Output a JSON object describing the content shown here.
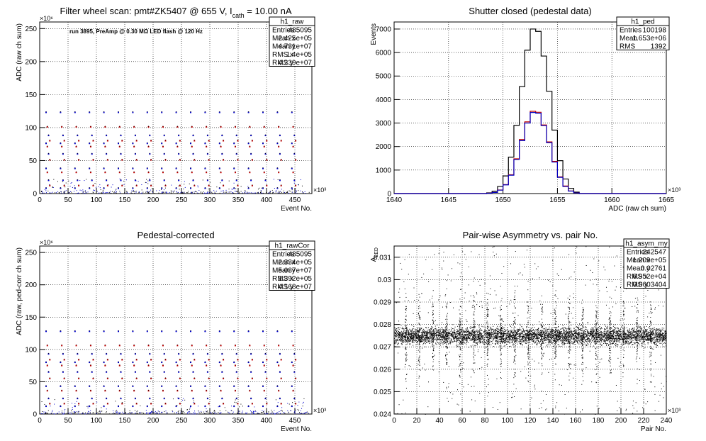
{
  "chart_data": [
    {
      "type": "scatter",
      "title": "Filter wheel scan: pmt#ZK5407 @   655 V, I",
      "title_sub": "cath",
      "title_tail": " = 10.00 nA",
      "annotation": "run 3895, PreAmp @ 0.30 MΩ LED flash @  120 Hz",
      "xlabel": "Event No.",
      "ylabel": "ADC (raw ch sum)",
      "x_exponent": "×10³",
      "y_exponent": "×10⁶",
      "xlim": [
        0,
        480
      ],
      "ylim": [
        0,
        260
      ],
      "xticks": [
        "0",
        "50",
        "100",
        "150",
        "200",
        "250",
        "300",
        "350",
        "400",
        "450"
      ],
      "yticks": [
        "0",
        "50",
        "100",
        "150",
        "200",
        "250"
      ],
      "levels": [
        123,
        101,
        88,
        80,
        76,
        71,
        60,
        51,
        38,
        32,
        20,
        12,
        8
      ],
      "stats": {
        "name": "h1_raw",
        "rows": [
          [
            "Entries",
            "485095"
          ],
          [
            "Mean x",
            "2.425e+05"
          ],
          [
            "Mean y",
            "4.731e+07"
          ],
          [
            "RMS x",
            "1.4e+05"
          ],
          [
            "RMS y",
            "4.239e+07"
          ]
        ]
      }
    },
    {
      "type": "line",
      "title": "Shutter closed (pedestal data)",
      "xlabel": "ADC (raw ch sum)",
      "ylabel": "Events",
      "x_exponent": "×10³",
      "xlim": [
        1640,
        1665
      ],
      "ylim": [
        0,
        7300
      ],
      "xticks": [
        "1640",
        "1645",
        "1650",
        "1655",
        "1660",
        "1665"
      ],
      "yticks": [
        "0",
        "1000",
        "2000",
        "3000",
        "4000",
        "5000",
        "6000",
        "7000"
      ],
      "series": [
        {
          "color": "#000000",
          "x": [
            1648,
            1648.5,
            1649,
            1649.5,
            1650,
            1650.5,
            1651,
            1651.5,
            1652,
            1652.5,
            1653,
            1653.5,
            1654,
            1654.5,
            1655,
            1655.5,
            1656,
            1656.5,
            1657
          ],
          "values": [
            0,
            30,
            100,
            300,
            750,
            1550,
            2900,
            4550,
            6100,
            7000,
            6900,
            5850,
            4350,
            2700,
            1400,
            620,
            220,
            60,
            0
          ]
        },
        {
          "color": "#c00000",
          "x": [
            1648,
            1648.5,
            1649,
            1649.5,
            1650,
            1650.5,
            1651,
            1651.5,
            1652,
            1652.5,
            1653,
            1653.5,
            1654,
            1654.5,
            1655,
            1655.5,
            1656,
            1656.5,
            1657
          ],
          "values": [
            0,
            15,
            50,
            150,
            380,
            800,
            1480,
            2300,
            3050,
            3500,
            3460,
            2920,
            2200,
            1370,
            710,
            320,
            110,
            30,
            0
          ]
        },
        {
          "color": "#0000c0",
          "x": [
            1648,
            1648.5,
            1649,
            1649.5,
            1650,
            1650.5,
            1651,
            1651.5,
            1652,
            1652.5,
            1653,
            1653.5,
            1654,
            1654.5,
            1655,
            1655.5,
            1656,
            1656.5,
            1657
          ],
          "values": [
            0,
            14,
            48,
            145,
            370,
            780,
            1450,
            2250,
            3000,
            3450,
            3420,
            2890,
            2160,
            1340,
            690,
            300,
            105,
            28,
            0
          ]
        }
      ],
      "stats": {
        "name": "h1_ped",
        "rows": [
          [
            "Entries",
            "100198"
          ],
          [
            "Mean",
            "1.653e+06"
          ],
          [
            "RMS",
            "1392"
          ]
        ]
      }
    },
    {
      "type": "scatter",
      "title": "Pedestal-corrected",
      "xlabel": "Event No.",
      "ylabel": "ADC (raw, ped-corr ch sum)",
      "x_exponent": "×10³",
      "y_exponent": "×10⁶",
      "xlim": [
        0,
        480
      ],
      "ylim": [
        0,
        260
      ],
      "xticks": [
        "0",
        "50",
        "100",
        "150",
        "200",
        "250",
        "300",
        "350",
        "400",
        "450"
      ],
      "yticks": [
        "0",
        "50",
        "100",
        "150",
        "200",
        "250"
      ],
      "levels": [
        128,
        106,
        93,
        84,
        80,
        75,
        65,
        55,
        43,
        36,
        24,
        16,
        12
      ],
      "stats": {
        "name": "h1_rawCor",
        "rows": [
          [
            "Entries",
            "485095"
          ],
          [
            "Mean x",
            "2.334e+05"
          ],
          [
            "Mean y",
            "5.087e+07"
          ],
          [
            "RMS x",
            "1.392e+05"
          ],
          [
            "RMS y",
            "4.168e+07"
          ]
        ]
      }
    },
    {
      "type": "scatter",
      "title": "Pair-wise Asymmetry vs. pair No.",
      "xlabel": "Pair No.",
      "ylabel": "A",
      "ylabel_sub": "LED",
      "x_exponent": "×10³",
      "xlim": [
        0,
        240
      ],
      "ylim": [
        0.024,
        0.0315
      ],
      "xticks": [
        "0",
        "20",
        "40",
        "60",
        "80",
        "100",
        "120",
        "140",
        "160",
        "180",
        "200",
        "220",
        "240"
      ],
      "yticks": [
        "0.024",
        "0.025",
        "0.026",
        "0.027",
        "0.028",
        "0.029",
        "0.03",
        "0.031"
      ],
      "band_center": 0.0275,
      "spikes_x": [
        10,
        22,
        34,
        46,
        58,
        70,
        82,
        94,
        106,
        118,
        130,
        142,
        154,
        166,
        178,
        190,
        202,
        214,
        226
      ],
      "stats": {
        "name": "h1_asym_my",
        "rows": [
          [
            "Entries",
            "242547"
          ],
          [
            "Mean x",
            "1.209e+05"
          ],
          [
            "Mean y",
            "0.02761"
          ],
          [
            "RMS x",
            "6.952e+04"
          ],
          [
            "RMS y",
            "0.0003404"
          ]
        ]
      }
    }
  ]
}
